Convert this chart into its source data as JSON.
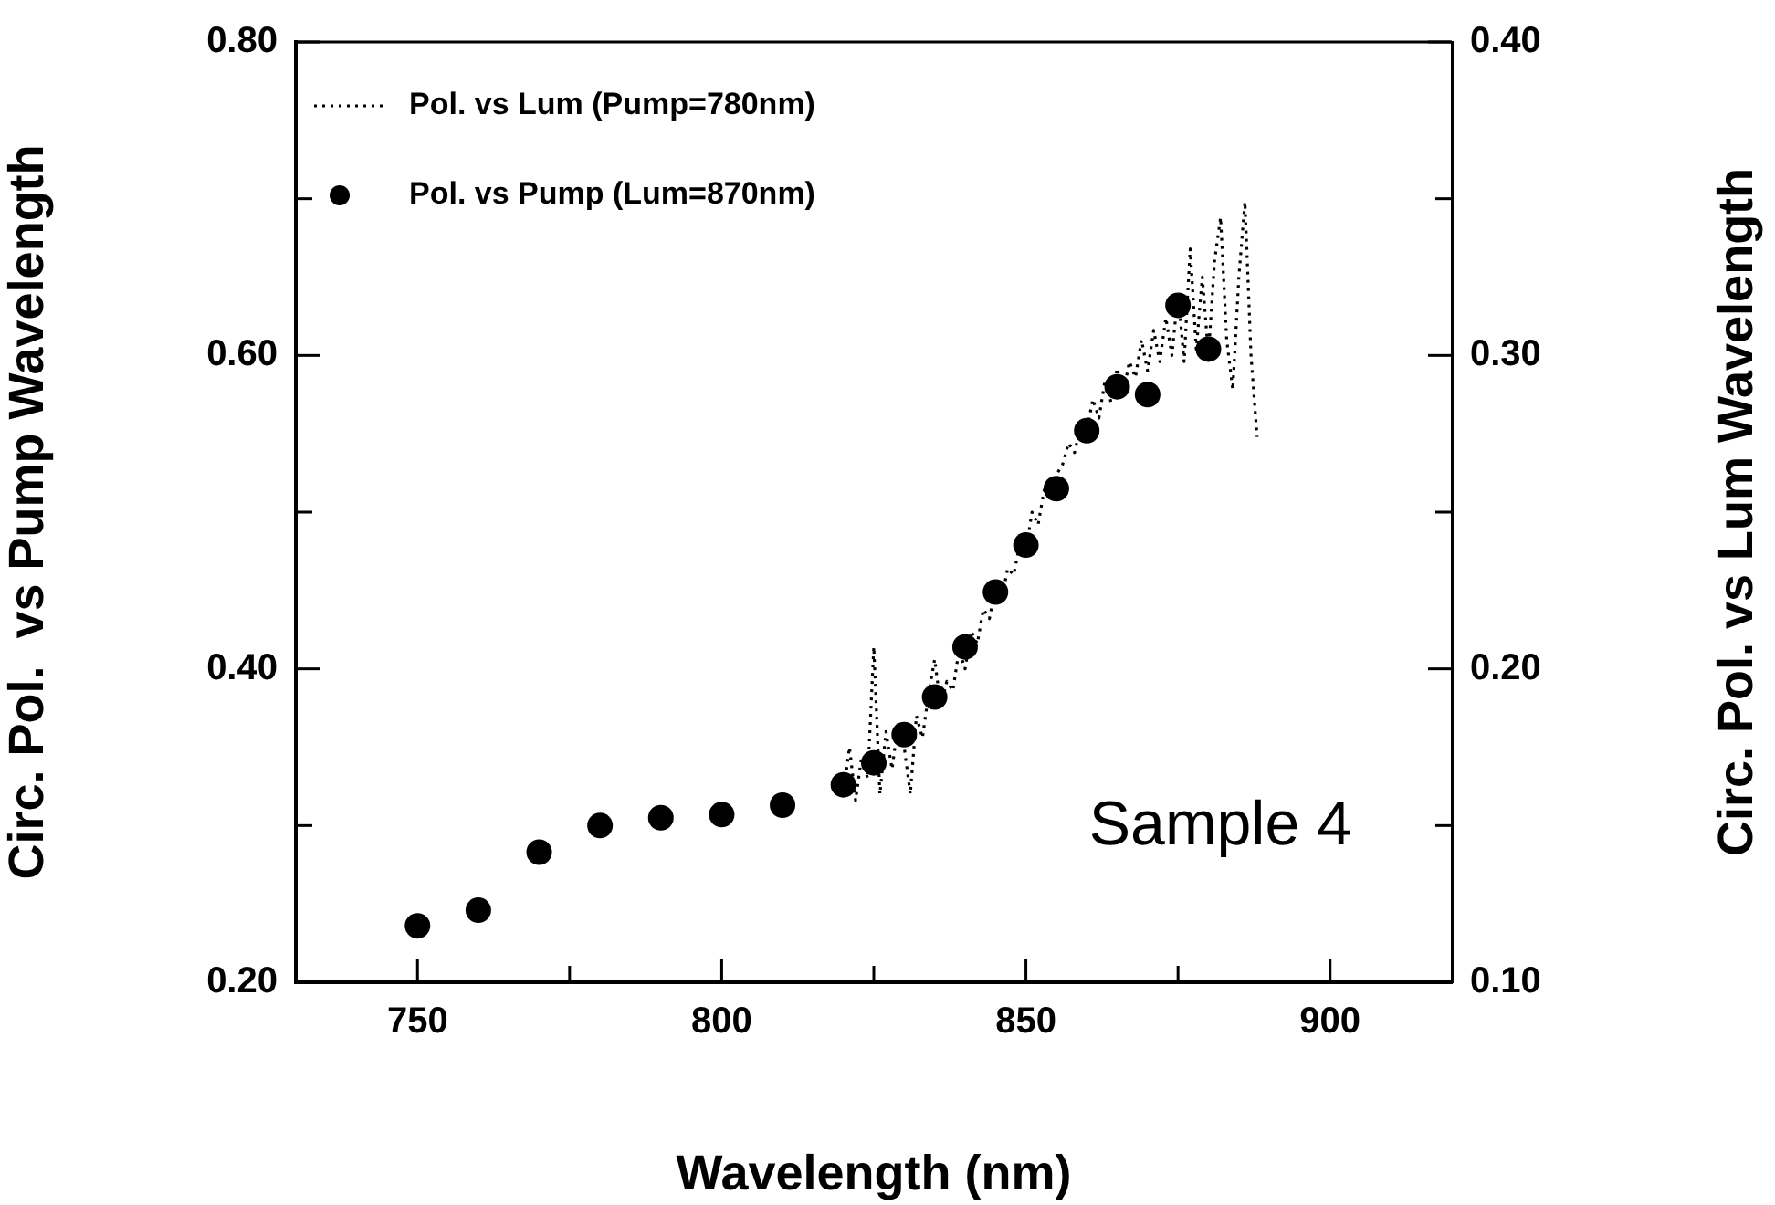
{
  "chart_data": {
    "type": "scatter",
    "xlabel": "Wavelength (nm)",
    "ylabel": "Circ. Pol.  vs Pump Wavelength",
    "y2label": "Circ. Pol. vs Lum Wavelength",
    "xlim": [
      730,
      920
    ],
    "xticks": [
      750,
      {
        "value": 775,
        "label": null
      },
      800,
      {
        "value": 825,
        "label": null
      },
      850,
      {
        "value": 875,
        "label": null
      },
      900
    ],
    "ylim": [
      0.2,
      0.8
    ],
    "yticks": [
      {
        "value": 0.2,
        "label": "0.20"
      },
      {
        "value": 0.3,
        "label": null
      },
      {
        "value": 0.4,
        "label": "0.40"
      },
      {
        "value": 0.5,
        "label": null
      },
      {
        "value": 0.6,
        "label": "0.60"
      },
      {
        "value": 0.7,
        "label": null
      },
      {
        "value": 0.8,
        "label": "0.80"
      }
    ],
    "y2lim": [
      0.1,
      0.4
    ],
    "y2ticks": [
      {
        "value": 0.1,
        "label": "0.10"
      },
      {
        "value": 0.15,
        "label": null
      },
      {
        "value": 0.2,
        "label": "0.20"
      },
      {
        "value": 0.25,
        "label": null
      },
      {
        "value": 0.3,
        "label": "0.30"
      },
      {
        "value": 0.35,
        "label": null
      },
      {
        "value": 0.4,
        "label": "0.40"
      }
    ],
    "legend": "top left",
    "grid": false,
    "annotations": [
      "Sample 4"
    ],
    "series": [
      {
        "name": "Pol. vs Lum (Pump=780nm)",
        "type": "line",
        "axis": "y2",
        "color": "#000000",
        "line_style": "dotted",
        "marker": "none",
        "x": [
          820,
          821,
          822,
          823,
          824,
          825,
          826,
          827,
          828,
          829,
          830,
          831,
          832,
          833,
          834,
          835,
          836,
          837,
          838,
          839,
          840,
          841,
          842,
          843,
          844,
          845,
          846,
          847,
          848,
          849,
          850,
          851,
          852,
          853,
          854,
          855,
          856,
          857,
          858,
          859,
          860,
          861,
          862,
          863,
          864,
          865,
          866,
          867,
          868,
          869,
          870,
          871,
          872,
          873,
          874,
          875,
          876,
          877,
          878,
          879,
          880,
          881,
          882,
          883,
          884,
          885,
          886,
          887,
          888
        ],
        "values": [
          0.16,
          0.175,
          0.158,
          0.172,
          0.165,
          0.207,
          0.16,
          0.18,
          0.168,
          0.183,
          0.175,
          0.16,
          0.185,
          0.178,
          0.192,
          0.203,
          0.188,
          0.196,
          0.193,
          0.206,
          0.2,
          0.212,
          0.208,
          0.219,
          0.216,
          0.226,
          0.222,
          0.232,
          0.23,
          0.24,
          0.238,
          0.25,
          0.246,
          0.257,
          0.254,
          0.262,
          0.265,
          0.272,
          0.269,
          0.278,
          0.276,
          0.286,
          0.28,
          0.292,
          0.285,
          0.296,
          0.288,
          0.298,
          0.293,
          0.305,
          0.295,
          0.308,
          0.298,
          0.312,
          0.3,
          0.32,
          0.298,
          0.334,
          0.302,
          0.325,
          0.3,
          0.33,
          0.344,
          0.305,
          0.289,
          0.325,
          0.349,
          0.3,
          0.274
        ]
      },
      {
        "name": "Pol. vs Pump (Lum=870nm)",
        "type": "scatter",
        "axis": "y",
        "color": "#000000",
        "marker": "circle",
        "x": [
          750,
          760,
          770,
          780,
          790,
          800,
          810,
          820,
          825,
          830,
          835,
          840,
          845,
          850,
          855,
          860,
          865,
          870,
          875,
          880
        ],
        "values": [
          0.236,
          0.246,
          0.283,
          0.3,
          0.305,
          0.307,
          0.313,
          0.326,
          0.34,
          0.358,
          0.382,
          0.414,
          0.449,
          0.479,
          0.515,
          0.552,
          0.58,
          0.575,
          0.632,
          0.604
        ]
      }
    ]
  }
}
